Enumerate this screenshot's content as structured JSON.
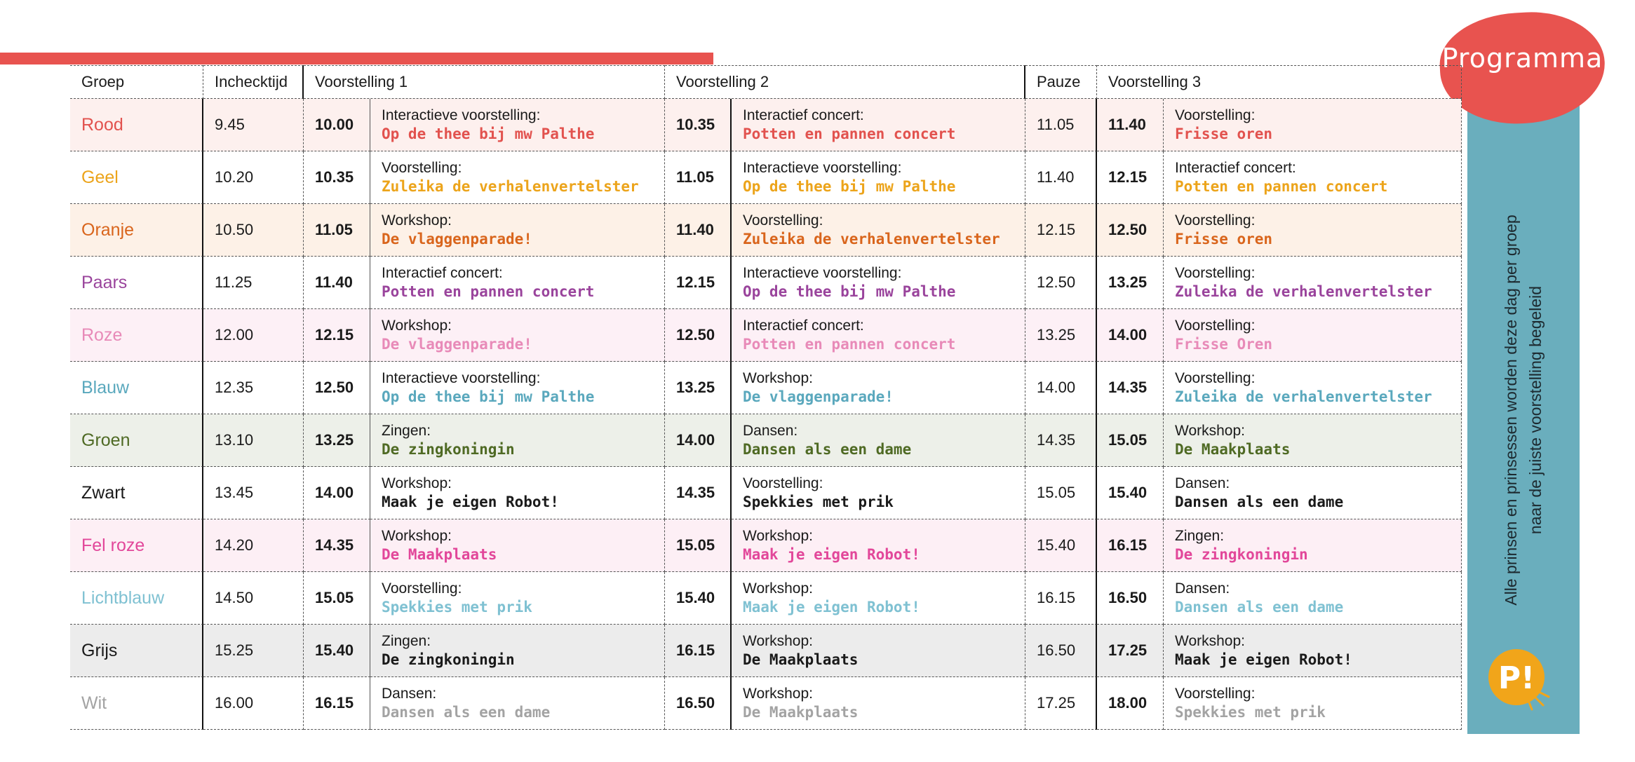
{
  "badge": {
    "label": "Programma"
  },
  "side_note": {
    "line1": "Alle prinsen en prinsessen worden deze dag per groep",
    "line2": "naar de juiste voorstelling begeleid"
  },
  "logo": {
    "text": "P!",
    "icon": "pitch-logo-icon"
  },
  "colors": {
    "accent_red": "#e8534f",
    "side_panel": "#6aaebd",
    "logo_yellow": "#f1a51a"
  },
  "headers": [
    "Groep",
    "Inchecktijd",
    "Voorstelling 1",
    "",
    "Voorstelling 2",
    "",
    "Pauze",
    "Voorstelling 3",
    ""
  ],
  "rows": [
    {
      "group": "Rood",
      "color": "#e2524e",
      "bg": "#fdf0ee",
      "checkin": "9.45",
      "t1": "10.00",
      "k1": "Interactieve voorstelling:",
      "s1": "Op de thee bij mw Palthe",
      "t2": "10.35",
      "k2": "Interactief concert:",
      "s2": "Potten en pannen concert",
      "pauze": "11.05",
      "t3": "11.40",
      "k3": "Voorstelling:",
      "s3": "Frisse oren"
    },
    {
      "group": "Geel",
      "color": "#eca41b",
      "bg": "#ffffff",
      "checkin": "10.20",
      "t1": "10.35",
      "k1": "Voorstelling:",
      "s1": "Zuleika de verhalenvertelster",
      "t2": "11.05",
      "k2": "Interactieve voorstelling:",
      "s2": "Op de thee bij mw Palthe",
      "pauze": "11.40",
      "t3": "12.15",
      "k3": "Interactief concert:",
      "s3": "Potten en pannen concert"
    },
    {
      "group": "Oranje",
      "color": "#d9651c",
      "bg": "#fdf1e7",
      "checkin": "10.50",
      "t1": "11.05",
      "k1": "Workshop:",
      "s1": "De vlaggenparade!",
      "t2": "11.40",
      "k2": "Voorstelling:",
      "s2": "Zuleika de verhalenvertelster",
      "pauze": "12.15",
      "t3": "12.50",
      "k3": "Voorstelling:",
      "s3": "Frisse oren"
    },
    {
      "group": "Paars",
      "color": "#9a449c",
      "bg": "#ffffff",
      "checkin": "11.25",
      "t1": "11.40",
      "k1": "Interactief concert:",
      "s1": "Potten en pannen concert",
      "t2": "12.15",
      "k2": "Interactieve voorstelling:",
      "s2": "Op de thee bij mw Palthe",
      "pauze": "12.50",
      "t3": "13.25",
      "k3": "Voorstelling:",
      "s3": "Zuleika de verhalenvertelster"
    },
    {
      "group": "Roze",
      "color": "#e88ab8",
      "bg": "#fdf0f6",
      "checkin": "12.00",
      "t1": "12.15",
      "k1": "Workshop:",
      "s1": "De vlaggenparade!",
      "t2": "12.50",
      "k2": "Interactief concert:",
      "s2": "Potten en pannen concert",
      "pauze": "13.25",
      "t3": "14.00",
      "k3": "Voorstelling:",
      "s3": "Frisse Oren"
    },
    {
      "group": "Blauw",
      "color": "#5aa8bd",
      "bg": "#ffffff",
      "checkin": "12.35",
      "t1": "12.50",
      "k1": "Interactieve voorstelling:",
      "s1": "Op de thee bij mw Palthe",
      "t2": "13.25",
      "k2": "Workshop:",
      "s2": "De vlaggenparade!",
      "pauze": "14.00",
      "t3": "14.35",
      "k3": "Voorstelling:",
      "s3": "Zuleika de verhalenvertelster"
    },
    {
      "group": "Groen",
      "color": "#4f6a24",
      "bg": "#edf0e9",
      "checkin": "13.10",
      "t1": "13.25",
      "k1": "Zingen:",
      "s1": "De zingkoningin",
      "t2": "14.00",
      "k2": "Dansen:",
      "s2": "Dansen als een dame",
      "pauze": "14.35",
      "t3": "15.05",
      "k3": "Workshop:",
      "s3": "De Maakplaats"
    },
    {
      "group": "Zwart",
      "color": "#1a1a1a",
      "bg": "#ffffff",
      "checkin": "13.45",
      "t1": "14.00",
      "k1": "Workshop:",
      "s1": "Maak je eigen Robot!",
      "t2": "14.35",
      "k2": "Voorstelling:",
      "s2": "Spekkies met prik",
      "pauze": "15.05",
      "t3": "15.40",
      "k3": "Dansen:",
      "s3": "Dansen als een dame"
    },
    {
      "group": "Fel roze",
      "color": "#e2479a",
      "bg": "#fdeff5",
      "checkin": "14.20",
      "t1": "14.35",
      "k1": "Workshop:",
      "s1": "De Maakplaats",
      "t2": "15.05",
      "k2": "Workshop:",
      "s2": "Maak je eigen Robot!",
      "pauze": "15.40",
      "t3": "16.15",
      "k3": "Zingen:",
      "s3": "De zingkoningin"
    },
    {
      "group": "Lichtblauw",
      "color": "#7fc1d2",
      "bg": "#ffffff",
      "checkin": "14.50",
      "t1": "15.05",
      "k1": "Voorstelling:",
      "s1": "Spekkies met prik",
      "t2": "15.40",
      "k2": "Workshop:",
      "s2": "Maak je eigen Robot!",
      "pauze": "16.15",
      "t3": "16.50",
      "k3": "Dansen:",
      "s3": "Dansen als een dame"
    },
    {
      "group": "Grijs",
      "color": "#1a1a1a",
      "bg": "#ececec",
      "checkin": "15.25",
      "t1": "15.40",
      "k1": "Zingen:",
      "s1": "De zingkoningin",
      "t2": "16.15",
      "k2": "Workshop:",
      "s2": "De Maakplaats",
      "pauze": "16.50",
      "t3": "17.25",
      "k3": "Workshop:",
      "s3": "Maak je eigen Robot!"
    },
    {
      "group": "Wit",
      "color": "#a3a3a3",
      "bg": "#ffffff",
      "checkin": "16.00",
      "t1": "16.15",
      "k1": "Dansen:",
      "s1": "Dansen als een dame",
      "t2": "16.50",
      "k2": "Workshop:",
      "s2": "De Maakplaats",
      "pauze": "17.25",
      "t3": "18.00",
      "k3": "Voorstelling:",
      "s3": "Spekkies met prik"
    }
  ]
}
